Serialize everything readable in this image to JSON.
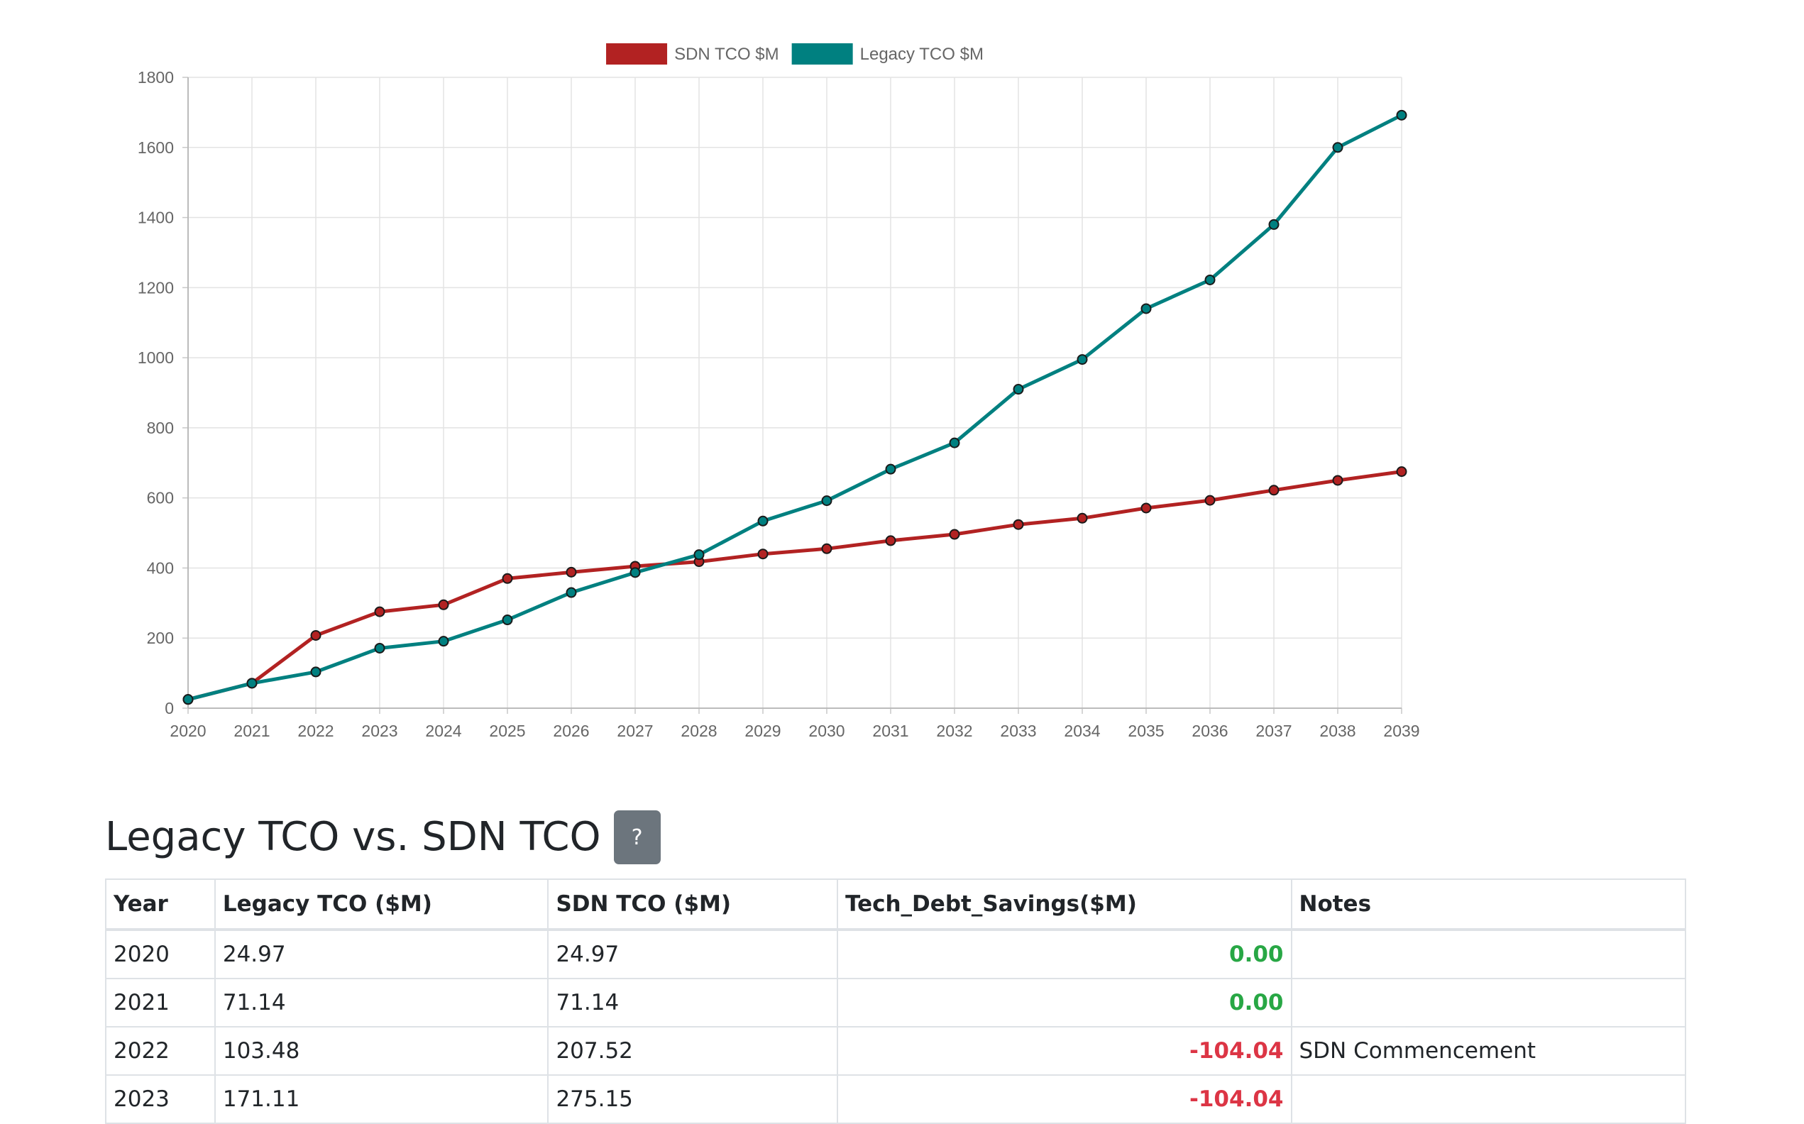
{
  "colors": {
    "sdn": "#b22222",
    "legacy": "#008080",
    "positive": "#28a745",
    "negative": "#dc3545",
    "help_button_bg": "#6c757d"
  },
  "chart_data": {
    "type": "line",
    "x": [
      "2020",
      "2021",
      "2022",
      "2023",
      "2024",
      "2025",
      "2026",
      "2027",
      "2028",
      "2029",
      "2030",
      "2031",
      "2032",
      "2033",
      "2034",
      "2035",
      "2036",
      "2037",
      "2038",
      "2039"
    ],
    "series": [
      {
        "name": "SDN TCO $M",
        "color": "#b22222",
        "values": [
          24.97,
          71.14,
          207.52,
          275.15,
          295,
          370,
          388,
          405,
          418,
          440,
          455,
          478,
          496,
          524,
          542,
          571,
          593,
          622,
          650,
          675
        ]
      },
      {
        "name": "Legacy TCO $M",
        "color": "#008080",
        "values": [
          24.97,
          71.14,
          103.48,
          171.11,
          191,
          252,
          330,
          387,
          438,
          534,
          592,
          682,
          757,
          910,
          995,
          1140,
          1222,
          1380,
          1600,
          1692
        ]
      }
    ],
    "ylim": [
      0,
      1800
    ],
    "yticks": [
      0,
      200,
      400,
      600,
      800,
      1000,
      1200,
      1400,
      1600,
      1800
    ],
    "grid": true,
    "legend": "top-center",
    "title": "",
    "xlabel": "",
    "ylabel": ""
  },
  "section": {
    "title": "Legacy TCO vs. SDN TCO",
    "help_label": "?"
  },
  "table": {
    "headers": [
      "Year",
      "Legacy TCO ($M)",
      "SDN TCO ($M)",
      "Tech_Debt_Savings($M)",
      "Notes"
    ],
    "rows": [
      {
        "year": "2020",
        "legacy": "24.97",
        "sdn": "24.97",
        "savings": "0.00",
        "notes": ""
      },
      {
        "year": "2021",
        "legacy": "71.14",
        "sdn": "71.14",
        "savings": "0.00",
        "notes": ""
      },
      {
        "year": "2022",
        "legacy": "103.48",
        "sdn": "207.52",
        "savings": "-104.04",
        "notes": "SDN Commencement"
      },
      {
        "year": "2023",
        "legacy": "171.11",
        "sdn": "275.15",
        "savings": "-104.04",
        "notes": ""
      }
    ]
  }
}
